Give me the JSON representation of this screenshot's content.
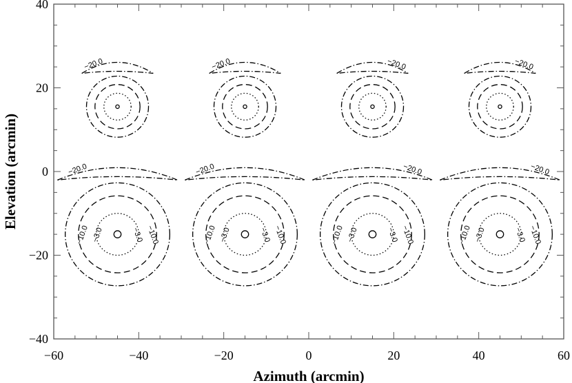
{
  "chart_data": {
    "type": "contour",
    "xlabel": "Azimuth (arcmin)",
    "ylabel": "Elevation (arcmin)",
    "xlim": [
      -60,
      60
    ],
    "ylim": [
      -40,
      40
    ],
    "x_ticks": [
      -60,
      -40,
      -20,
      0,
      20,
      40,
      60
    ],
    "y_ticks": [
      -40,
      -20,
      0,
      20,
      40
    ],
    "x_tick_labels": [
      "−60",
      "−40",
      "−20",
      "0",
      "20",
      "40",
      "60"
    ],
    "y_tick_labels": [
      "−40",
      "−20",
      "0",
      "20",
      "40"
    ],
    "grid": false,
    "beam_centers": [
      {
        "az": -45,
        "el": 15.5,
        "row": "top"
      },
      {
        "az": -15,
        "el": 15.5,
        "row": "top"
      },
      {
        "az": 15,
        "el": 15.5,
        "row": "top"
      },
      {
        "az": 45,
        "el": 15.5,
        "row": "top"
      },
      {
        "az": -45,
        "el": -15,
        "row": "bottom"
      },
      {
        "az": -15,
        "el": -15,
        "row": "bottom"
      },
      {
        "az": 15,
        "el": -15,
        "row": "bottom"
      },
      {
        "az": 45,
        "el": -15,
        "row": "bottom"
      }
    ],
    "contour_levels_db": [
      -3,
      -10,
      -20
    ],
    "contour_label_text": {
      "-3": "−3.0",
      "-10": "−10.0",
      "-20": "−20.0"
    },
    "contour_radii_arcmin": {
      "top": {
        "-3": 3.2,
        "-10": 5.3,
        "-20": 7.3
      },
      "bottom": {
        "-3": 5.0,
        "-10": 9.2,
        "-20": 12.3
      }
    },
    "labels_shown": {
      "top": [
        "-20"
      ],
      "bottom": [
        "-3",
        "-10",
        "-20"
      ]
    }
  }
}
